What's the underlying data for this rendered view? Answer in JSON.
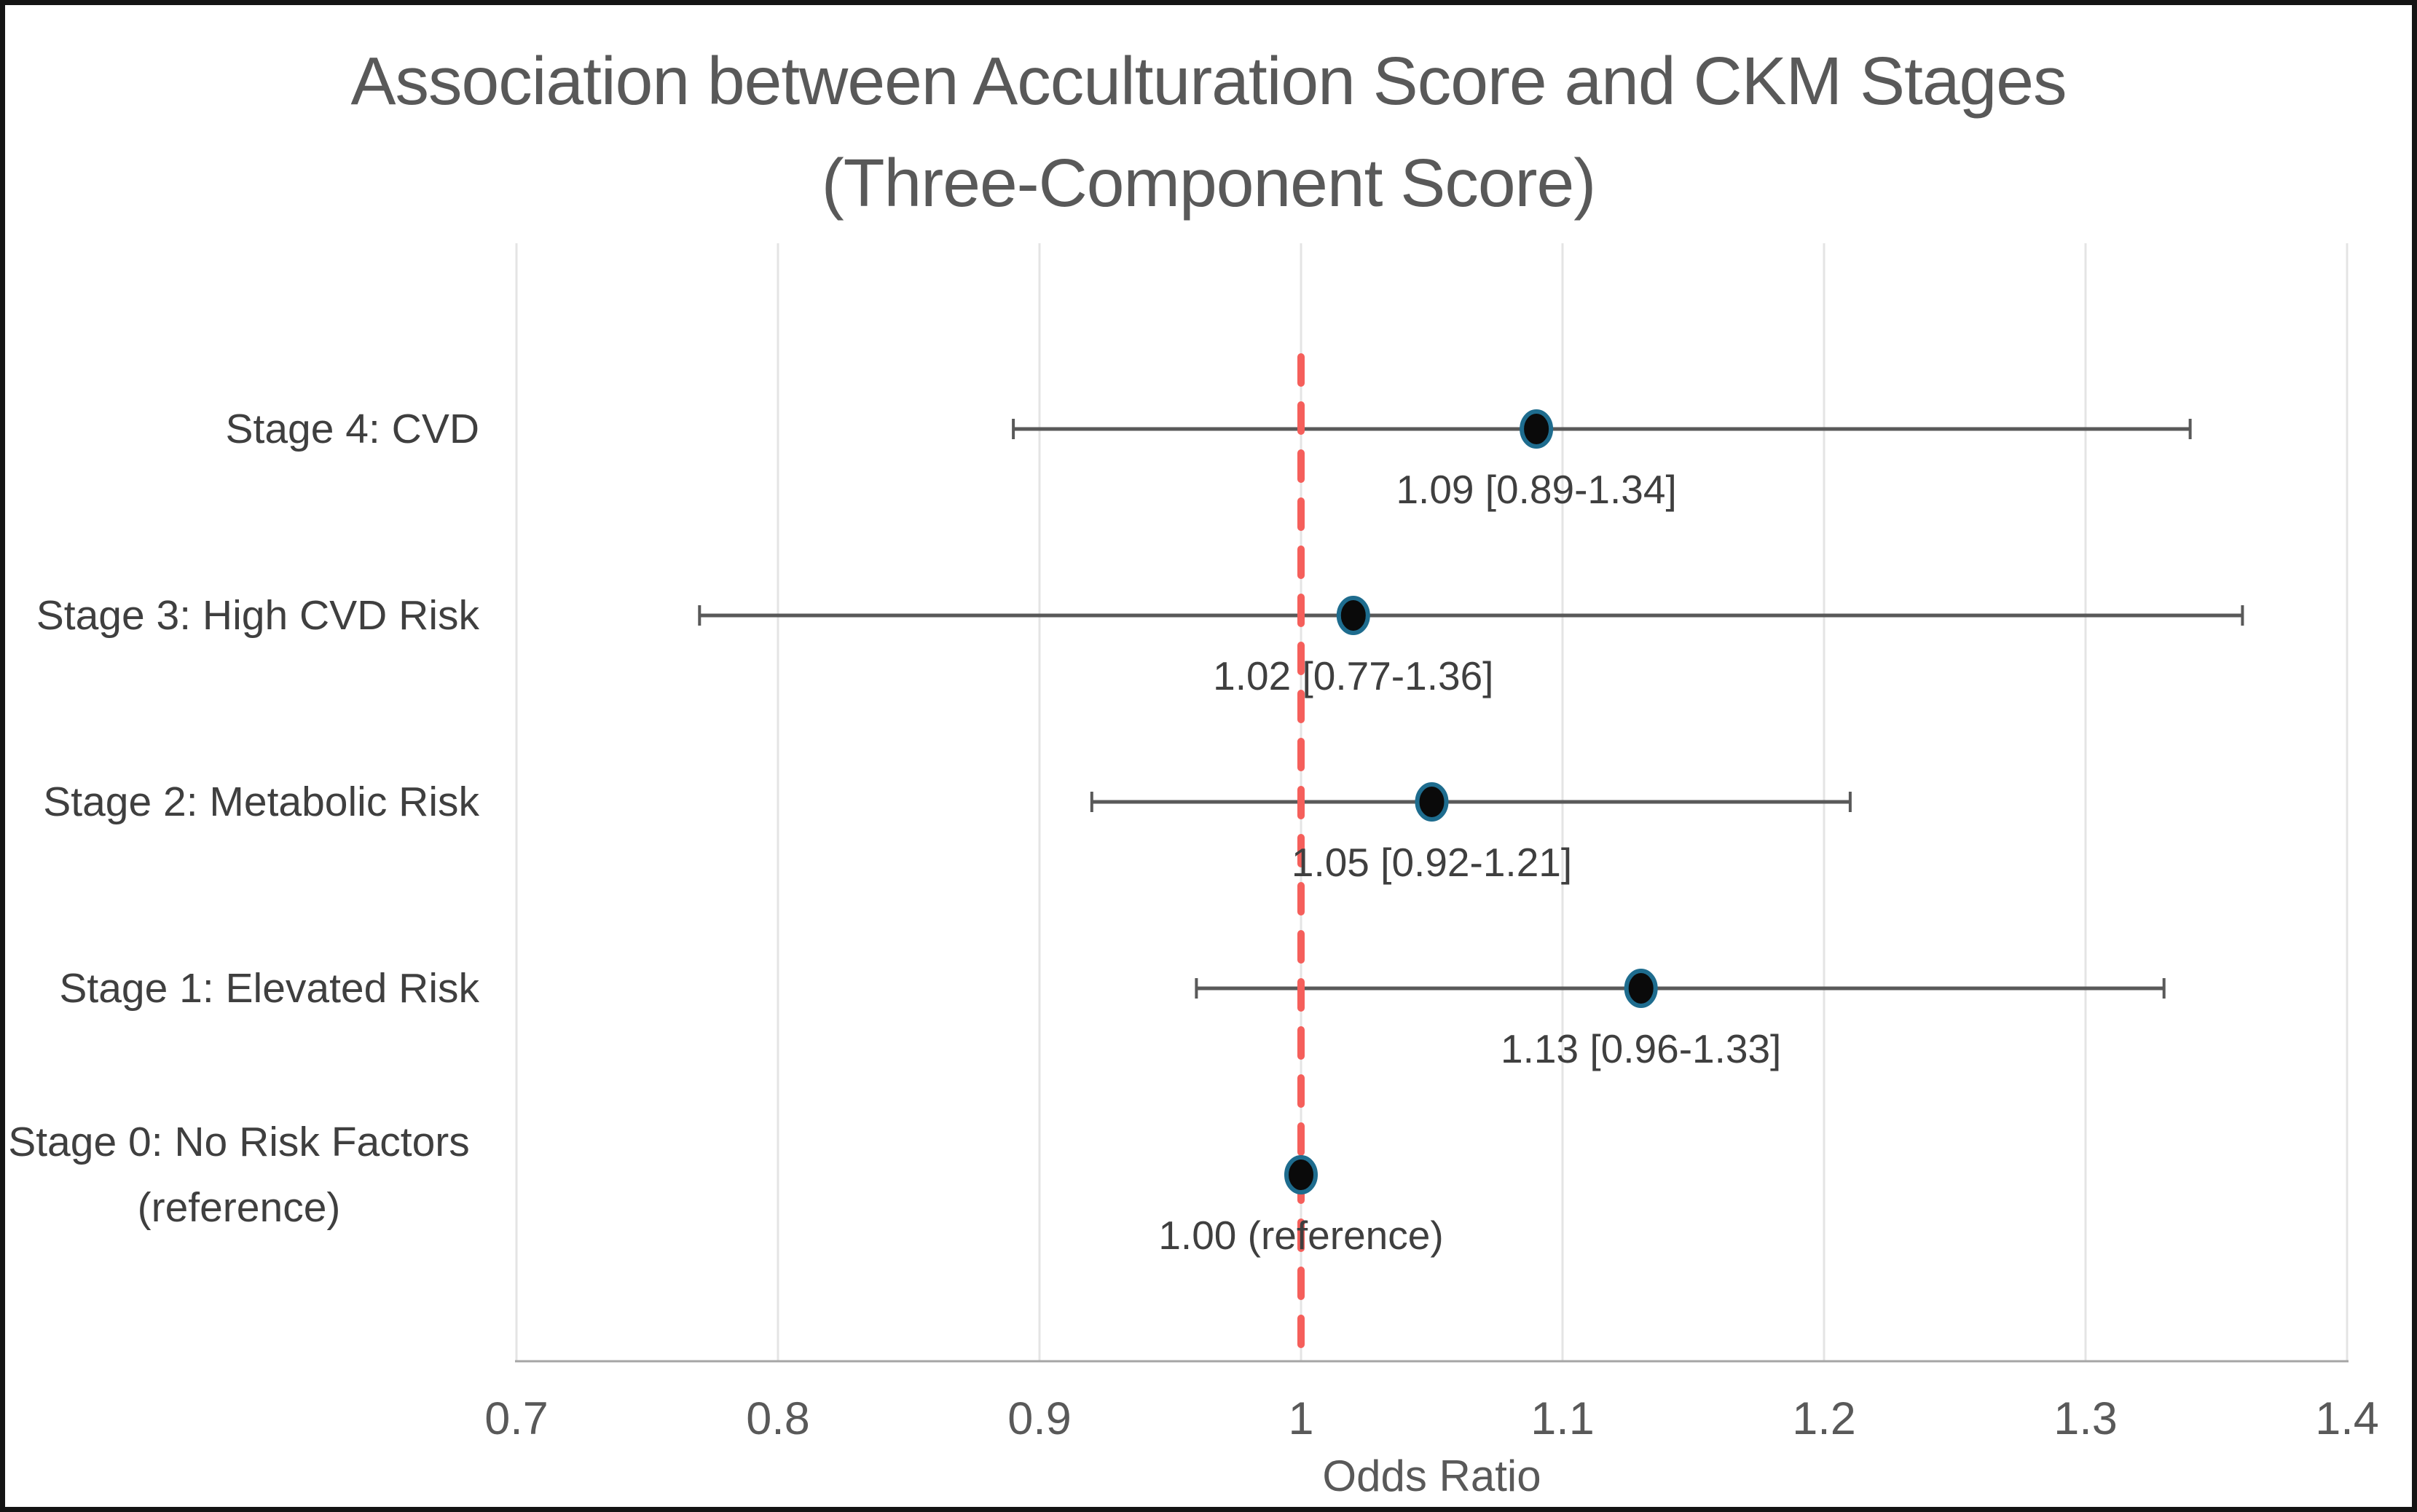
{
  "title": {
    "line1": "Association between Acculturation Score and CKM Stages",
    "line2": "(Three-Component Score)"
  },
  "axis": {
    "label": "Odds Ratio",
    "min": 0.7,
    "max": 1.4,
    "step": 0.1,
    "tick_labels": [
      "0.7",
      "0.8",
      "0.9",
      "1",
      "1.1",
      "1.2",
      "1.3",
      "1.4"
    ],
    "reference_value": 1.0
  },
  "chart_data": {
    "type": "scatter",
    "subtype": "forest-plot",
    "title": "Association between Acculturation Score and CKM Stages (Three-Component Score)",
    "xlabel": "Odds Ratio",
    "xlim": [
      0.7,
      1.4
    ],
    "grid": "vertical",
    "reference_line": 1.0,
    "rows": [
      {
        "label": "Stage 4: CVD",
        "label_line2": "",
        "or": 1.09,
        "ci_low": 0.89,
        "ci_high": 1.34,
        "value_label": "1.09 [0.89-1.34]",
        "has_ci": true
      },
      {
        "label": "Stage 3: High CVD Risk",
        "label_line2": "",
        "or": 1.02,
        "ci_low": 0.77,
        "ci_high": 1.36,
        "value_label": "1.02 [0.77-1.36]",
        "has_ci": true
      },
      {
        "label": "Stage 2: Metabolic Risk",
        "label_line2": "",
        "or": 1.05,
        "ci_low": 0.92,
        "ci_high": 1.21,
        "value_label": "1.05 [0.92-1.21]",
        "has_ci": true
      },
      {
        "label": "Stage 1: Elevated Risk",
        "label_line2": "",
        "or": 1.13,
        "ci_low": 0.96,
        "ci_high": 1.33,
        "value_label": "1.13 [0.96-1.33]",
        "has_ci": true
      },
      {
        "label": "Stage 0: No Risk Factors",
        "label_line2": "(reference)",
        "or": 1.0,
        "ci_low": null,
        "ci_high": null,
        "value_label": "1.00 (reference)",
        "has_ci": false
      }
    ]
  },
  "colors": {
    "title_text": "#595959",
    "label_text": "#3f3f3f",
    "tick_text": "#595959",
    "gridline": "#e4e4e4",
    "axis_line": "#a6a6a6",
    "error_bar": "#595959",
    "marker_fill": "#0a0a0a",
    "marker_edge": "#1e6c8e",
    "reference_line": "#f55f5b"
  }
}
